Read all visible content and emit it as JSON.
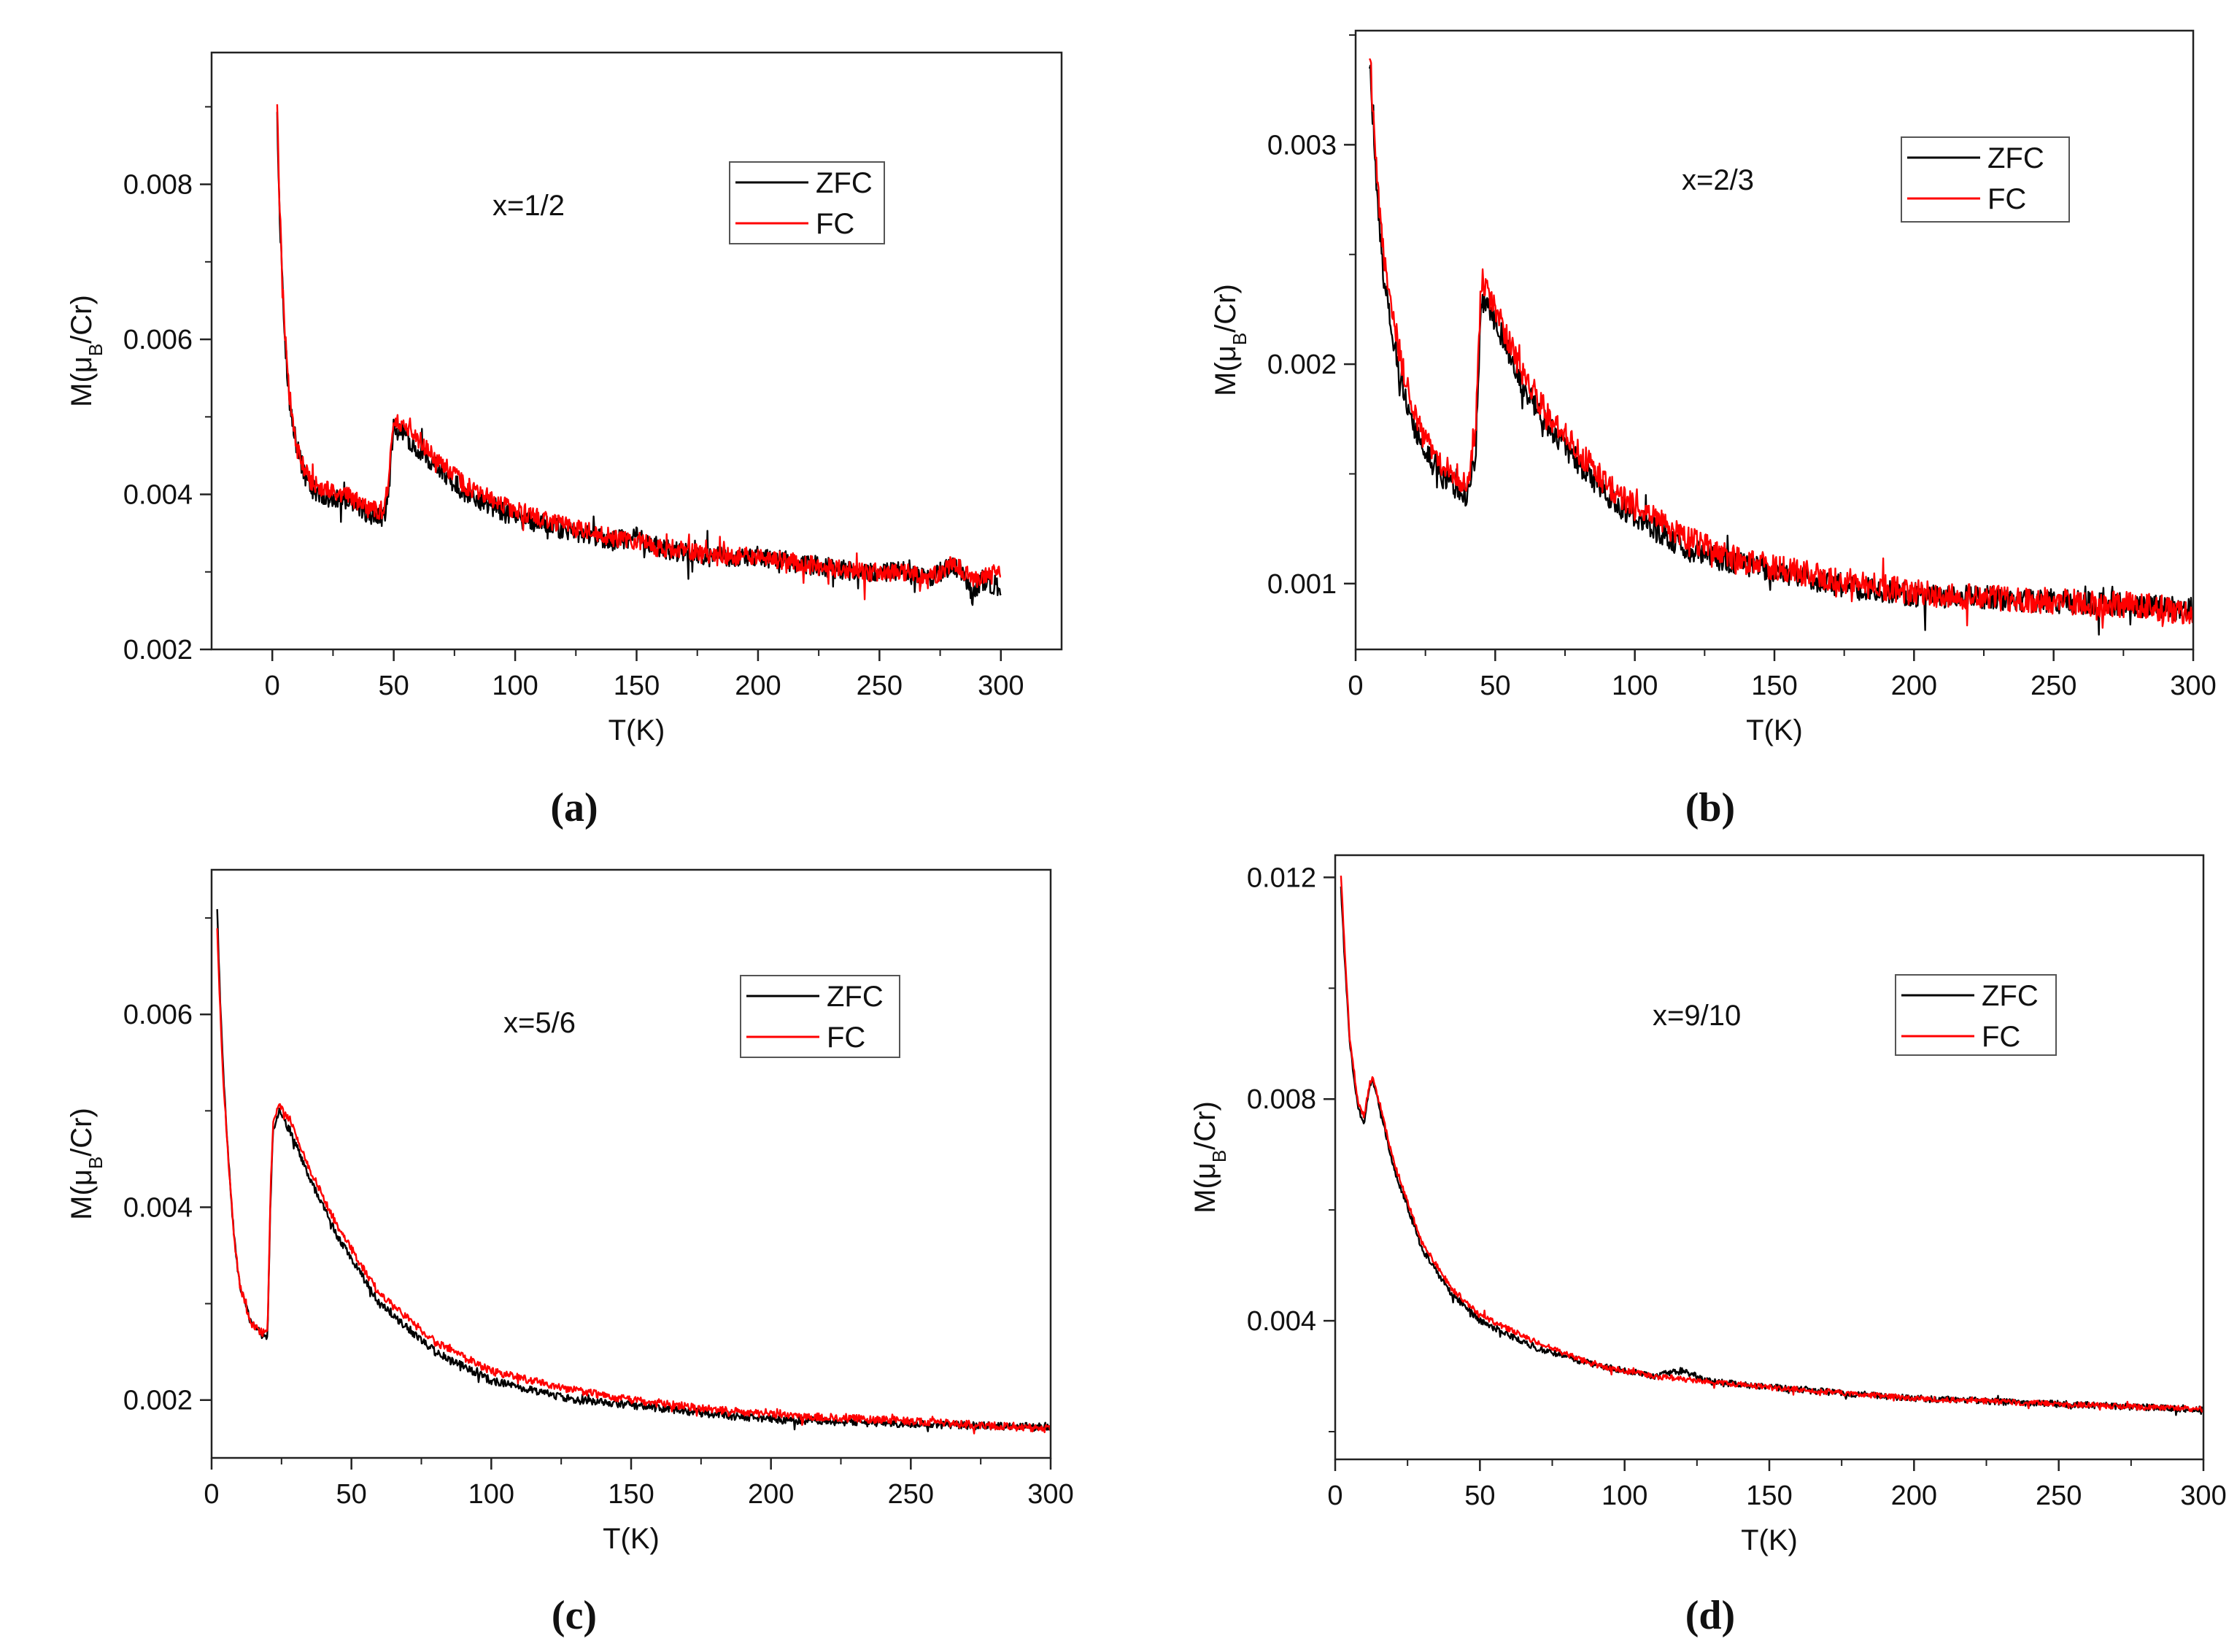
{
  "figure": {
    "labels": [
      "(a)",
      "(b)",
      "(c)",
      "(d)"
    ]
  },
  "colors": {
    "zfc": "#000000",
    "fc": "#ff0000"
  },
  "chart_data": [
    {
      "type": "line",
      "panel": "(a)",
      "annotation": "x=1/2",
      "xlabel": "T(K)",
      "ylabel": {
        "prefix": "M(μ",
        "sub": "B",
        "suffix": "/Cr)"
      },
      "xlim": [
        -25,
        325
      ],
      "ylim": [
        0.002,
        0.0097
      ],
      "xticks": [
        0,
        50,
        100,
        150,
        200,
        250,
        300
      ],
      "xtick_labels": [
        "0",
        "50",
        "100",
        "150",
        "200",
        "250",
        "300"
      ],
      "yticks": [
        0.002,
        0.004,
        0.006,
        0.008
      ],
      "ytick_labels": [
        "0.002",
        "0.004",
        "0.006",
        "0.008"
      ],
      "legend": {
        "position": "top-right",
        "entries": [
          "ZFC",
          "FC"
        ]
      },
      "series": [
        {
          "name": "ZFC",
          "color": "#000000",
          "noise": 0.00013,
          "x": [
            2,
            3,
            5,
            7,
            10,
            15,
            20,
            30,
            40,
            46,
            48,
            50,
            60,
            70,
            80,
            100,
            120,
            140,
            150,
            160,
            170,
            180,
            200,
            220,
            240,
            260,
            270,
            280,
            285,
            288,
            292,
            300
          ],
          "values": [
            0.0089,
            0.0076,
            0.0061,
            0.0052,
            0.0046,
            0.0041,
            0.004,
            0.0039,
            0.00375,
            0.0037,
            0.0041,
            0.0049,
            0.0046,
            0.0043,
            0.004,
            0.0037,
            0.00355,
            0.0034,
            0.00345,
            0.0033,
            0.00325,
            0.0032,
            0.0032,
            0.0031,
            0.003,
            0.003,
            0.0029,
            0.0031,
            0.003,
            0.00265,
            0.0029,
            0.0028
          ]
        },
        {
          "name": "FC",
          "color": "#ff0000",
          "noise": 0.00012,
          "x": [
            2,
            3,
            5,
            7,
            10,
            15,
            20,
            30,
            40,
            46,
            48,
            50,
            60,
            70,
            80,
            100,
            120,
            140,
            150,
            160,
            170,
            180,
            200,
            220,
            240,
            260,
            270,
            280,
            285,
            290,
            300
          ],
          "values": [
            0.009,
            0.0077,
            0.0062,
            0.0053,
            0.0046,
            0.0042,
            0.0041,
            0.004,
            0.0038,
            0.0038,
            0.0042,
            0.005,
            0.0047,
            0.0044,
            0.0041,
            0.0038,
            0.0036,
            0.00345,
            0.0034,
            0.0033,
            0.0033,
            0.0032,
            0.0032,
            0.0031,
            0.003,
            0.003,
            0.0029,
            0.0031,
            0.003,
            0.0029,
            0.003
          ]
        }
      ]
    },
    {
      "type": "line",
      "panel": "(b)",
      "annotation": "x=2/3",
      "xlabel": "T(K)",
      "ylabel": {
        "prefix": "M(μ",
        "sub": "B",
        "suffix": "/Cr)"
      },
      "xlim": [
        0,
        300
      ],
      "ylim": [
        0.0007,
        0.00352
      ],
      "xticks": [
        0,
        50,
        100,
        150,
        200,
        250,
        300
      ],
      "xtick_labels": [
        "0",
        "50",
        "100",
        "150",
        "200",
        "250",
        "300"
      ],
      "yticks": [
        0.001,
        0.002,
        0.003
      ],
      "ytick_labels": [
        "0.001",
        "0.002",
        "0.003"
      ],
      "legend": {
        "position": "top-right",
        "entries": [
          "ZFC",
          "FC"
        ]
      },
      "series": [
        {
          "name": "ZFC",
          "color": "#000000",
          "noise": 5.5e-05,
          "x": [
            5,
            6,
            8,
            10,
            15,
            20,
            25,
            30,
            35,
            40,
            43,
            45,
            50,
            60,
            70,
            80,
            90,
            100,
            120,
            140,
            160,
            180,
            200,
            220,
            250,
            280,
            300
          ],
          "values": [
            0.0034,
            0.0031,
            0.0027,
            0.0024,
            0.002,
            0.00175,
            0.0016,
            0.0015,
            0.00145,
            0.0014,
            0.0016,
            0.0023,
            0.0022,
            0.0019,
            0.0017,
            0.00155,
            0.0014,
            0.0013,
            0.00115,
            0.00108,
            0.00103,
            0.00098,
            0.00095,
            0.00094,
            0.00092,
            0.0009,
            0.00088
          ]
        },
        {
          "name": "FC",
          "color": "#ff0000",
          "noise": 6e-05,
          "x": [
            5,
            6,
            8,
            10,
            15,
            20,
            25,
            30,
            35,
            40,
            43,
            45,
            50,
            60,
            70,
            80,
            90,
            100,
            120,
            140,
            160,
            180,
            200,
            220,
            250,
            280,
            300
          ],
          "values": [
            0.00345,
            0.0032,
            0.0028,
            0.0025,
            0.0021,
            0.0018,
            0.00165,
            0.00155,
            0.0015,
            0.00145,
            0.0017,
            0.0024,
            0.00225,
            0.00195,
            0.00175,
            0.0016,
            0.00145,
            0.00135,
            0.0012,
            0.0011,
            0.00105,
            0.001,
            0.00096,
            0.00094,
            0.00092,
            0.0009,
            0.00087
          ]
        }
      ]
    },
    {
      "type": "line",
      "panel": "(c)",
      "annotation": "x=5/6",
      "xlabel": "T(K)",
      "ylabel": {
        "prefix": "M(μ",
        "sub": "B",
        "suffix": "/Cr)"
      },
      "xlim": [
        0,
        300
      ],
      "ylim": [
        0.0014,
        0.0075
      ],
      "xticks": [
        0,
        50,
        100,
        150,
        200,
        250,
        300
      ],
      "xtick_labels": [
        "0",
        "50",
        "100",
        "150",
        "200",
        "250",
        "300"
      ],
      "yticks": [
        0.002,
        0.004,
        0.006
      ],
      "ytick_labels": [
        "0.002",
        "0.004",
        "0.006"
      ],
      "legend": {
        "position": "top-right",
        "entries": [
          "ZFC",
          "FC"
        ]
      },
      "series": [
        {
          "name": "ZFC",
          "color": "#000000",
          "noise": 4e-05,
          "x": [
            2,
            3,
            4,
            6,
            8,
            10,
            14,
            18,
            20,
            21,
            22,
            24,
            28,
            35,
            45,
            60,
            80,
            100,
            130,
            150,
            180,
            200,
            250,
            300
          ],
          "values": [
            0.0071,
            0.0062,
            0.0055,
            0.0045,
            0.0037,
            0.0032,
            0.0028,
            0.00268,
            0.00265,
            0.004,
            0.0048,
            0.005,
            0.0048,
            0.0043,
            0.0037,
            0.003,
            0.0025,
            0.0022,
            0.002,
            0.00195,
            0.00185,
            0.0018,
            0.00175,
            0.00172
          ]
        },
        {
          "name": "FC",
          "color": "#ff0000",
          "noise": 4e-05,
          "x": [
            2,
            3,
            4,
            6,
            8,
            10,
            14,
            18,
            20,
            21,
            22,
            24,
            28,
            35,
            45,
            60,
            80,
            100,
            130,
            150,
            180,
            200,
            250,
            300
          ],
          "values": [
            0.0069,
            0.0061,
            0.0054,
            0.0045,
            0.0037,
            0.0032,
            0.0028,
            0.0027,
            0.0027,
            0.0041,
            0.0049,
            0.00505,
            0.0049,
            0.0044,
            0.0038,
            0.0031,
            0.0026,
            0.0023,
            0.0021,
            0.002,
            0.0019,
            0.00185,
            0.00178,
            0.0017
          ]
        }
      ]
    },
    {
      "type": "line",
      "panel": "(d)",
      "annotation": "x=9/10",
      "xlabel": "T(K)",
      "ylabel": {
        "prefix": "M(μ",
        "sub": "B",
        "suffix": "/Cr)"
      },
      "xlim": [
        0,
        300
      ],
      "ylim": [
        0.0015,
        0.0124
      ],
      "xticks": [
        0,
        50,
        100,
        150,
        200,
        250,
        300
      ],
      "xtick_labels": [
        "0",
        "50",
        "100",
        "150",
        "200",
        "250",
        "300"
      ],
      "yticks": [
        0.004,
        0.008,
        0.012
      ],
      "ytick_labels": [
        "0.004",
        "0.008",
        "0.012"
      ],
      "legend": {
        "position": "top-right",
        "entries": [
          "ZFC",
          "FC"
        ]
      },
      "series": [
        {
          "name": "ZFC",
          "color": "#000000",
          "noise": 6e-05,
          "x": [
            2,
            3,
            5,
            8,
            10,
            12,
            13,
            15,
            20,
            30,
            40,
            50,
            70,
            90,
            110,
            120,
            130,
            150,
            200,
            250,
            300
          ],
          "values": [
            0.0118,
            0.0108,
            0.009,
            0.0078,
            0.0076,
            0.0082,
            0.0083,
            0.0079,
            0.0068,
            0.0053,
            0.0045,
            0.004,
            0.0035,
            0.0032,
            0.003,
            0.0031,
            0.0029,
            0.0028,
            0.0026,
            0.0025,
            0.0024
          ]
        },
        {
          "name": "FC",
          "color": "#ff0000",
          "noise": 5e-05,
          "x": [
            2,
            3,
            5,
            8,
            10,
            12,
            13,
            15,
            20,
            30,
            40,
            50,
            70,
            90,
            110,
            120,
            130,
            150,
            200,
            250,
            300
          ],
          "values": [
            0.012,
            0.011,
            0.0091,
            0.0079,
            0.0077,
            0.0083,
            0.0084,
            0.008,
            0.0069,
            0.0054,
            0.0046,
            0.0041,
            0.0036,
            0.0032,
            0.003,
            0.00295,
            0.0029,
            0.0028,
            0.0026,
            0.0025,
            0.0024
          ]
        }
      ]
    }
  ]
}
